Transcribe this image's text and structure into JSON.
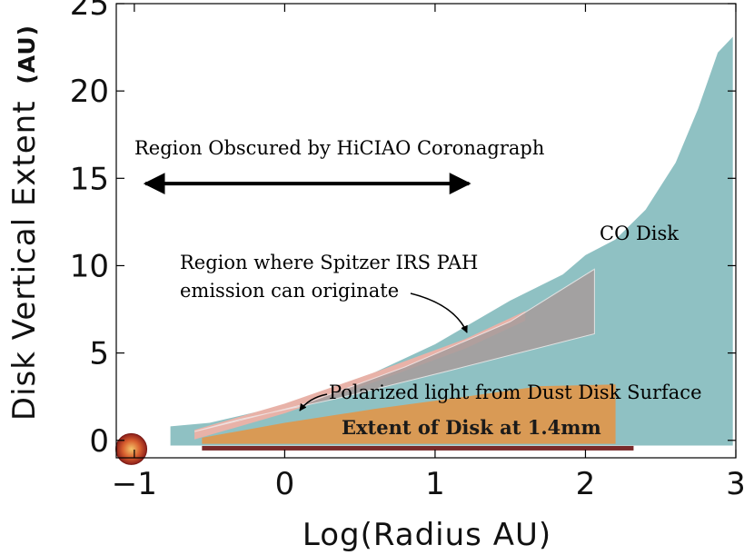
{
  "chart_data": {
    "type": "area",
    "xlabel": "Log(Radius AU)",
    "ylabel": "Disk Vertical Extent",
    "ylabel_unit": "(AU)",
    "xlim": [
      -1.12,
      3.0
    ],
    "ylim": [
      -1.0,
      25.0
    ],
    "x_ticks": [
      {
        "value": -1,
        "label": "−1"
      },
      {
        "value": 0,
        "label": "0"
      },
      {
        "value": 1,
        "label": "1"
      },
      {
        "value": 2,
        "label": "2"
      },
      {
        "value": 3,
        "label": "3"
      }
    ],
    "y_ticks": [
      {
        "value": 0,
        "label": "0"
      },
      {
        "value": 5,
        "label": "5"
      },
      {
        "value": 10,
        "label": "10"
      },
      {
        "value": 15,
        "label": "15"
      },
      {
        "value": 20,
        "label": "20"
      },
      {
        "value": 25,
        "label": "25"
      }
    ],
    "grid": false,
    "regions": {
      "co_disk": {
        "label": "CO Disk",
        "color": "#8fc1c3",
        "upper": [
          [
            -0.76,
            0.8
          ],
          [
            -0.5,
            1.0
          ],
          [
            0.0,
            2.0
          ],
          [
            0.5,
            3.5
          ],
          [
            1.0,
            5.5
          ],
          [
            1.5,
            8.0
          ],
          [
            1.85,
            9.5
          ],
          [
            2.0,
            10.6
          ],
          [
            2.2,
            11.5
          ],
          [
            2.4,
            13.2
          ],
          [
            2.6,
            15.9
          ],
          [
            2.75,
            19.0
          ],
          [
            2.88,
            22.2
          ],
          [
            2.98,
            23.1
          ],
          [
            2.98,
            -0.3
          ]
        ],
        "lower": -0.3
      },
      "pah_region": {
        "label": "Region where Spitzer IRS PAH emission can originate",
        "color": "#a79c9c",
        "polygon": [
          [
            -0.6,
            0.5
          ],
          [
            0.1,
            2.0
          ],
          [
            0.8,
            4.2
          ],
          [
            1.5,
            6.8
          ],
          [
            2.06,
            9.8
          ],
          [
            2.06,
            6.1
          ],
          [
            1.1,
            4.0
          ],
          [
            0.35,
            2.4
          ],
          [
            -0.3,
            1.2
          ]
        ]
      },
      "polarized_surface": {
        "label": "Polarized light from Dust Disk Surface",
        "color": "#e8b2a8",
        "upper": [
          [
            -0.6,
            0.6
          ],
          [
            0.0,
            2.1
          ],
          [
            0.6,
            3.9
          ],
          [
            1.2,
            5.8
          ],
          [
            1.6,
            7.4
          ]
        ]
      },
      "mm_disk": {
        "label": "Extent of Disk at 1.4mm",
        "color": "#d99a55",
        "polygon": [
          [
            -0.55,
            0.15
          ],
          [
            0.0,
            1.0
          ],
          [
            0.6,
            1.8
          ],
          [
            1.2,
            2.5
          ],
          [
            1.7,
            3.1
          ],
          [
            2.2,
            3.2
          ],
          [
            2.2,
            -0.2
          ],
          [
            -0.55,
            -0.2
          ]
        ]
      },
      "bar_1_4mm": {
        "color": "#7a2a2a",
        "x": [
          -0.55,
          2.32
        ]
      }
    },
    "annotations": [
      {
        "id": "coronagraph",
        "text": "Region Obscured by HiCIAO Coronagraph",
        "arrow_x": [
          -0.95,
          1.25
        ],
        "y": 14.7
      },
      {
        "id": "pah",
        "line1": "Region where Spitzer IRS PAH",
        "line2": "emission can originate"
      },
      {
        "id": "co",
        "text": "CO Disk"
      },
      {
        "id": "polarized",
        "text": "Polarized light from Dust Disk Surface"
      },
      {
        "id": "mm",
        "text": "Extent of Disk at 1.4mm"
      }
    ],
    "star_marker": {
      "x": -1.02,
      "y": -0.5,
      "color": "#c8342a"
    }
  }
}
